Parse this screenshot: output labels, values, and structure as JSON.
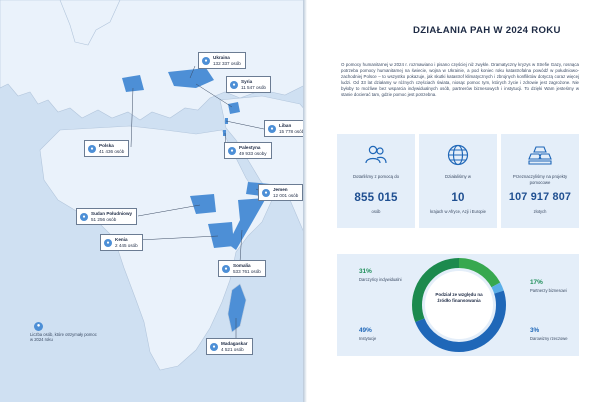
{
  "map": {
    "colors": {
      "sea": "#cfe0f2",
      "land": "#eaf2fb",
      "highlight": "#4d8fd6",
      "border": "#b3c6dc"
    },
    "callouts": [
      {
        "country": "Ukraina",
        "value": "132 337 osób"
      },
      {
        "country": "Syria",
        "value": "11 547 osób"
      },
      {
        "country": "Liban",
        "value": "15 778 osób"
      },
      {
        "country": "Palestyna",
        "value": "49 933 osoby"
      },
      {
        "country": "Polska",
        "value": "41 436 osób"
      },
      {
        "country": "Jemen",
        "value": "12 001 osób"
      },
      {
        "country": "Sudan Południowy",
        "value": "51 256 osób"
      },
      {
        "country": "Kenia",
        "value": "2 445 osób"
      },
      {
        "country": "Somalia",
        "value": "533 761 osób"
      },
      {
        "country": "Madagaskar",
        "value": "4 521 osób"
      }
    ],
    "legend": "Liczba osób, które otrzymały pomoc w 2024 roku",
    "legend_icon": "person-icon"
  },
  "right": {
    "title": "DZIAŁANIA PAH W 2024 ROKU",
    "intro": "O pomocy humanitarnej w 2024 r. rozmawiano i pisano częściej niż zwykle. Dramatyczny kryzys w Strefie Gazy, rosnąca potrzeba pomocy humanitarnej na świecie, wojna w Ukrainie, a pod koniec roku katastrofalna powódź w południowo-zachodniej Polsce – to wszystko pokazuje, jak skutki katastrof klimatycznych i zbrojnych konfliktów dotyczą coraz więcej ludzi. Od 33 lat działamy w różnych częściach świata, niosąc pomoc tym, których życie i zdrowie jest zagrożone. Nie byłoby to możliwe bez wsparcia indywidualnych osób, partnerów biznesowych i instytucji. To dzięki Wam jesteśmy w stanie docierać tam, gdzie pomoc jest potrzebna.",
    "stats": [
      {
        "icon": "people-icon",
        "label": "Dotarliśmy z pomocą do",
        "value": "855 015",
        "sub": "osób"
      },
      {
        "icon": "globe-icon",
        "label": "Działaliśmy w",
        "value": "10",
        "sub": "krajach w Afryce, Azji i Europie"
      },
      {
        "icon": "gold-bars-icon",
        "label": "Przeznaczyliśmy na projekty pomocowe",
        "value": "107 917 807",
        "sub": "złotych"
      }
    ],
    "funding": {
      "center_title": "Podział ze względu na źródło finansowania",
      "segments": [
        {
          "pct": "31%",
          "label": "Darczyńcy indywidualni",
          "value": 31,
          "color": "#1c8a4e"
        },
        {
          "pct": "49%",
          "label": "Instytucje",
          "value": 49,
          "color": "#1f67b8"
        },
        {
          "pct": "17%",
          "label": "Partnerzy biznesowi",
          "value": 17,
          "color": "#37a84f"
        },
        {
          "pct": "3%",
          "label": "Darowizny rzeczowe",
          "value": 3,
          "color": "#5aaee8"
        }
      ]
    }
  }
}
